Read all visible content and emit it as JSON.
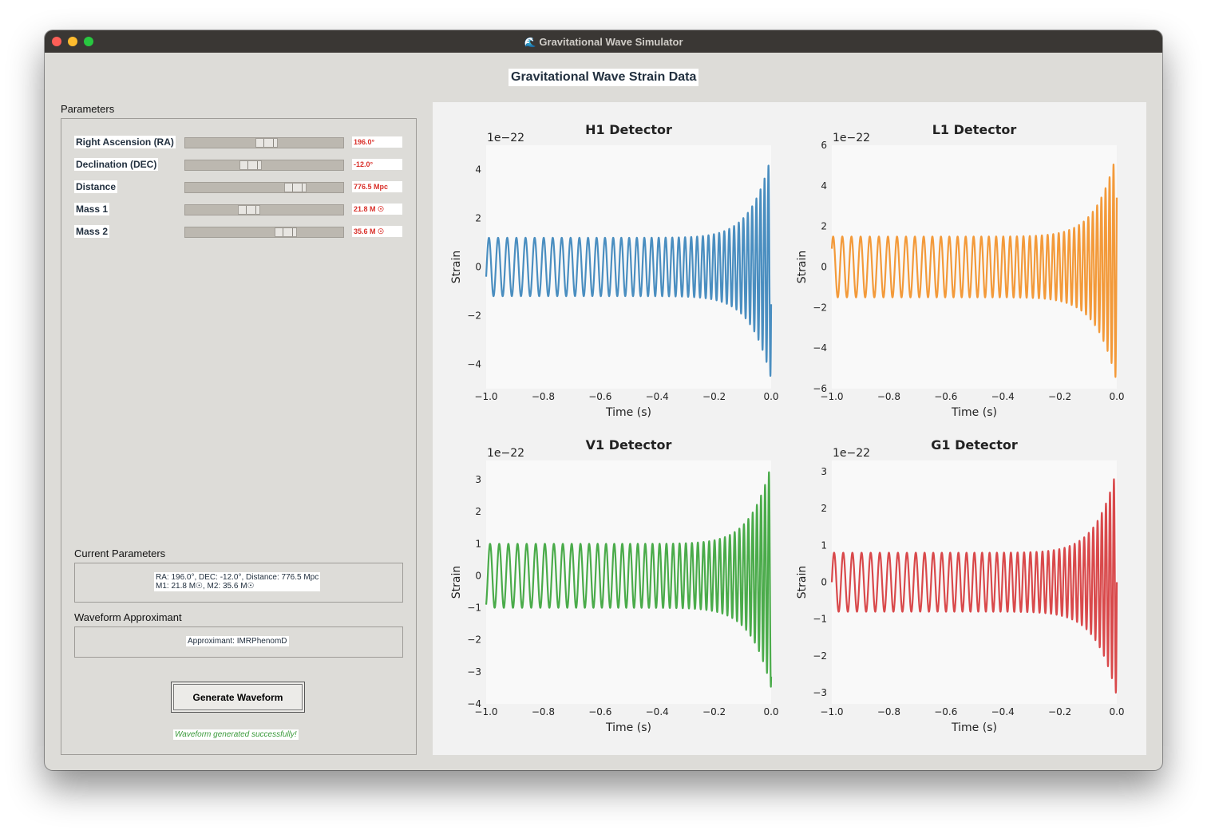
{
  "window": {
    "title": "Gravitational Wave Simulator",
    "title_icon": "wave-icon",
    "controls": [
      "close",
      "minimize",
      "maximize"
    ]
  },
  "header": {
    "title": "Gravitational Wave Strain Data"
  },
  "parameters": {
    "label": "Parameters",
    "items": [
      {
        "label": "Right Ascension (RA)",
        "value": "196.0°",
        "level": 0.52
      },
      {
        "label": "Declination (DEC)",
        "value": "-12.0°",
        "level": 0.4
      },
      {
        "label": "Distance",
        "value": "776.5 Mpc",
        "level": 0.73
      },
      {
        "label": "Mass 1",
        "value": "21.8 M ☉",
        "level": 0.39
      },
      {
        "label": "Mass 2",
        "value": "35.6 M ☉",
        "level": 0.66
      }
    ]
  },
  "current": {
    "label": "Current Parameters",
    "line1": "RA: 196.0°, DEC: -12.0°, Distance: 776.5 Mpc",
    "line2": "M1: 21.8 M☉, M2: 35.6 M☉"
  },
  "approximant": {
    "label": "Waveform Approximant",
    "text": "Approximant: IMRPhenomD"
  },
  "actions": {
    "generate_label": "Generate Waveform"
  },
  "status": {
    "text": "Waveform generated successfully!"
  },
  "colors": {
    "H1": "#4a8ec0",
    "L1": "#f39a3a",
    "V1": "#4aab4a",
    "G1": "#d9494b",
    "value_text": "#d9302a",
    "status_text": "#3a9a3a"
  },
  "chart_data": [
    {
      "type": "line",
      "title": "H1 Detector",
      "xlabel": "Time (s)",
      "ylabel": "Strain",
      "scale_label": "1e−22",
      "xlim": [
        -1.0,
        0.0
      ],
      "ylim": [
        -5.0,
        5.0
      ],
      "xticks": [
        "−1.0",
        "−0.8",
        "−0.6",
        "−0.4",
        "−0.2",
        "0.0"
      ],
      "xtick_values": [
        -1.0,
        -0.8,
        -0.6,
        -0.4,
        -0.2,
        0.0
      ],
      "yticks": [
        "−4",
        "−2",
        "0",
        "2",
        "4"
      ],
      "ytick_values": [
        -4,
        -2,
        0,
        2,
        4
      ],
      "waveform": {
        "base_amplitude": 1.2,
        "peak_amplitude": 4.6,
        "start_value": -0.4,
        "cycles": 42
      },
      "series": [
        {
          "color": "#4a8ec0"
        }
      ]
    },
    {
      "type": "line",
      "title": "L1 Detector",
      "xlabel": "Time (s)",
      "ylabel": "Strain",
      "scale_label": "1e−22",
      "xlim": [
        -1.0,
        0.0
      ],
      "ylim": [
        -6.0,
        6.0
      ],
      "xticks": [
        "−1.0",
        "−0.8",
        "−0.6",
        "−0.4",
        "−0.2",
        "0.0"
      ],
      "xtick_values": [
        -1.0,
        -0.8,
        -0.6,
        -0.4,
        -0.2,
        0.0
      ],
      "yticks": [
        "−6",
        "−4",
        "−2",
        "0",
        "2",
        "4",
        "6"
      ],
      "ytick_values": [
        -6,
        -4,
        -2,
        0,
        2,
        4,
        6
      ],
      "waveform": {
        "base_amplitude": 1.5,
        "peak_amplitude": 5.7,
        "start_value": 0.9,
        "cycles": 42
      },
      "series": [
        {
          "color": "#f39a3a"
        }
      ]
    },
    {
      "type": "line",
      "title": "V1 Detector",
      "xlabel": "Time (s)",
      "ylabel": "Strain",
      "scale_label": "1e−22",
      "xlim": [
        -1.0,
        0.0
      ],
      "ylim": [
        -4.0,
        3.6
      ],
      "xticks": [
        "−1.0",
        "−0.8",
        "−0.6",
        "−0.4",
        "−0.2",
        "0.0"
      ],
      "xtick_values": [
        -1.0,
        -0.8,
        -0.6,
        -0.4,
        -0.2,
        0.0
      ],
      "yticks": [
        "−4",
        "−3",
        "−2",
        "−1",
        "0",
        "1",
        "2",
        "3"
      ],
      "ytick_values": [
        -4,
        -3,
        -2,
        -1,
        0,
        1,
        2,
        3
      ],
      "waveform": {
        "base_amplitude": 1.0,
        "peak_amplitude": 3.5,
        "start_value": -0.9,
        "cycles": 42
      },
      "series": [
        {
          "color": "#4aab4a"
        }
      ]
    },
    {
      "type": "line",
      "title": "G1 Detector",
      "xlabel": "Time (s)",
      "ylabel": "Strain",
      "scale_label": "1e−22",
      "xlim": [
        -1.0,
        0.0
      ],
      "ylim": [
        -3.3,
        3.3
      ],
      "xticks": [
        "−1.0",
        "−0.8",
        "−0.6",
        "−0.4",
        "−0.2",
        "0.0"
      ],
      "xtick_values": [
        -1.0,
        -0.8,
        -0.6,
        -0.4,
        -0.2,
        0.0
      ],
      "yticks": [
        "−3",
        "−2",
        "−1",
        "0",
        "1",
        "2",
        "3"
      ],
      "ytick_values": [
        -3,
        -2,
        -1,
        0,
        1,
        2,
        3
      ],
      "waveform": {
        "base_amplitude": 0.8,
        "peak_amplitude": 3.1,
        "start_value": 0.0,
        "cycles": 42
      },
      "series": [
        {
          "color": "#d9494b"
        }
      ]
    }
  ]
}
